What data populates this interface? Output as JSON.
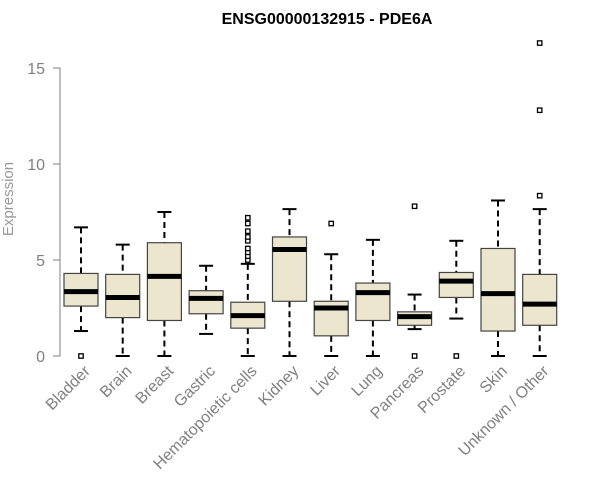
{
  "chart_data": {
    "type": "boxplot",
    "title": "ENSG00000132915 - PDE6A",
    "ylabel": "Expression",
    "xlabel": "",
    "ylim": [
      0,
      16.5
    ],
    "yticks": [
      0,
      5,
      10,
      15
    ],
    "grid": false,
    "legend": "none",
    "box_fill": "#ede6cf",
    "box_stroke": "#444444",
    "median_color": "#000000",
    "categories": [
      "Bladder",
      "Brain",
      "Breast",
      "Gastric",
      "Hematopoietic cells",
      "Kidney",
      "Liver",
      "Lung",
      "Pancreas",
      "Prostate",
      "Skin",
      "Unknown / Other"
    ],
    "boxes": [
      {
        "min": 1.3,
        "q1": 2.6,
        "median": 3.35,
        "q3": 4.3,
        "max": 6.7,
        "outliers": [
          0.0
        ]
      },
      {
        "min": 0.0,
        "q1": 2.0,
        "median": 3.05,
        "q3": 4.25,
        "max": 5.8,
        "outliers": []
      },
      {
        "min": 0.0,
        "q1": 1.85,
        "median": 4.15,
        "q3": 5.9,
        "max": 7.5,
        "outliers": []
      },
      {
        "min": 1.15,
        "q1": 2.2,
        "median": 3.0,
        "q3": 3.4,
        "max": 4.7,
        "outliers": []
      },
      {
        "min": 0.0,
        "q1": 1.45,
        "median": 2.1,
        "q3": 2.8,
        "max": 4.8,
        "outliers": [
          5.0,
          5.2,
          5.4,
          5.6,
          6.0,
          6.2,
          6.5,
          6.9,
          7.2
        ]
      },
      {
        "min": 0.0,
        "q1": 2.85,
        "median": 5.55,
        "q3": 6.2,
        "max": 7.65,
        "outliers": []
      },
      {
        "min": 0.0,
        "q1": 1.05,
        "median": 2.5,
        "q3": 2.85,
        "max": 5.3,
        "outliers": [
          6.9
        ]
      },
      {
        "min": 0.0,
        "q1": 1.85,
        "median": 3.3,
        "q3": 3.8,
        "max": 6.05,
        "outliers": []
      },
      {
        "min": 1.4,
        "q1": 1.6,
        "median": 2.05,
        "q3": 2.3,
        "max": 3.2,
        "outliers": [
          0.0,
          7.8
        ]
      },
      {
        "min": 1.95,
        "q1": 3.05,
        "median": 3.9,
        "q3": 4.35,
        "max": 6.0,
        "outliers": [
          0.0
        ]
      },
      {
        "min": 0.0,
        "q1": 1.3,
        "median": 3.25,
        "q3": 5.6,
        "max": 8.1,
        "outliers": []
      },
      {
        "min": 0.0,
        "q1": 1.6,
        "median": 2.7,
        "q3": 4.25,
        "max": 7.65,
        "outliers": [
          8.35,
          12.8,
          16.3
        ]
      }
    ]
  }
}
